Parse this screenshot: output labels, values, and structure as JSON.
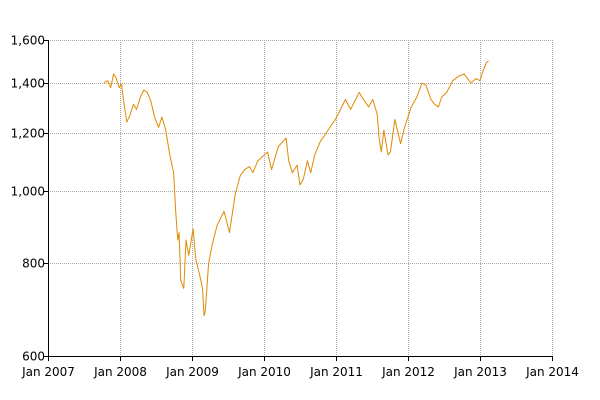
{
  "chart_data": {
    "type": "line",
    "title": "",
    "xlabel": "",
    "ylabel": "",
    "y_scale": "log",
    "ylim": [
      600,
      1600
    ],
    "xlim": [
      "2007-01-01",
      "2014-01-01"
    ],
    "grid": true,
    "line_color": "#e08a00",
    "y_ticks": [
      {
        "value": 600,
        "label": "600"
      },
      {
        "value": 800,
        "label": "800"
      },
      {
        "value": 1000,
        "label": "1,000"
      },
      {
        "value": 1200,
        "label": "1,200"
      },
      {
        "value": 1400,
        "label": "1,400"
      },
      {
        "value": 1600,
        "label": "1,600"
      }
    ],
    "x_ticks": [
      {
        "value": "2007-01-01",
        "label": "Jan 2007"
      },
      {
        "value": "2008-01-01",
        "label": "Jan 2008"
      },
      {
        "value": "2009-01-01",
        "label": "Jan 2009"
      },
      {
        "value": "2010-01-01",
        "label": "Jan 2010"
      },
      {
        "value": "2011-01-01",
        "label": "Jan 2011"
      },
      {
        "value": "2012-01-01",
        "label": "Jan 2012"
      },
      {
        "value": "2013-01-01",
        "label": "Jan 2013"
      },
      {
        "value": "2014-01-01",
        "label": "Jan 2014"
      }
    ],
    "series": [
      {
        "x": [
          "2007-10-10",
          "2007-10-31",
          "2007-11-15",
          "2007-11-30",
          "2007-12-14",
          "2007-12-28",
          "2008-01-09",
          "2008-01-22",
          "2008-02-05",
          "2008-02-20",
          "2008-03-10",
          "2008-03-25",
          "2008-04-14",
          "2008-05-01",
          "2008-05-19",
          "2008-06-05",
          "2008-06-25",
          "2008-07-15",
          "2008-08-01",
          "2008-08-20",
          "2008-09-10",
          "2008-09-29",
          "2008-10-10",
          "2008-10-20",
          "2008-10-27",
          "2008-11-04",
          "2008-11-20",
          "2008-12-01",
          "2008-12-15",
          "2009-01-06",
          "2009-01-20",
          "2009-02-09",
          "2009-02-23",
          "2009-03-03",
          "2009-03-09",
          "2009-03-26",
          "2009-04-14",
          "2009-05-08",
          "2009-06-12",
          "2009-07-10",
          "2009-08-07",
          "2009-09-02",
          "2009-09-24",
          "2009-10-20",
          "2009-11-05",
          "2009-12-01",
          "2010-01-19",
          "2010-02-08",
          "2010-03-15",
          "2010-04-23",
          "2010-05-06",
          "2010-05-25",
          "2010-06-18",
          "2010-07-02",
          "2010-07-20",
          "2010-08-09",
          "2010-08-26",
          "2010-09-15",
          "2010-10-15",
          "2010-11-05",
          "2010-12-01",
          "2010-12-29",
          "2011-01-18",
          "2011-02-18",
          "2011-03-16",
          "2011-04-29",
          "2011-05-20",
          "2011-06-16",
          "2011-07-07",
          "2011-07-29",
          "2011-08-08",
          "2011-08-19",
          "2011-09-01",
          "2011-09-22",
          "2011-10-04",
          "2011-10-27",
          "2011-11-25",
          "2011-12-15",
          "2012-01-18",
          "2012-02-15",
          "2012-03-13",
          "2012-04-02",
          "2012-04-27",
          "2012-05-16",
          "2012-06-04",
          "2012-06-20",
          "2012-07-16",
          "2012-08-15",
          "2012-09-14",
          "2012-10-12",
          "2012-11-15",
          "2012-12-12",
          "2012-12-31",
          "2013-01-15",
          "2013-02-01",
          "2013-02-13"
        ],
        "y": [
          1400,
          1410,
          1380,
          1440,
          1420,
          1380,
          1395,
          1310,
          1240,
          1265,
          1310,
          1290,
          1340,
          1370,
          1360,
          1325,
          1260,
          1220,
          1260,
          1210,
          1120,
          1060,
          940,
          860,
          880,
          760,
          740,
          860,
          820,
          890,
          810,
          770,
          740,
          680,
          690,
          800,
          850,
          900,
          940,
          880,
          990,
          1050,
          1070,
          1080,
          1060,
          1100,
          1130,
          1070,
          1150,
          1180,
          1100,
          1060,
          1085,
          1020,
          1040,
          1100,
          1060,
          1120,
          1170,
          1190,
          1220,
          1250,
          1280,
          1330,
          1290,
          1360,
          1330,
          1300,
          1330,
          1270,
          1180,
          1130,
          1210,
          1120,
          1130,
          1250,
          1160,
          1220,
          1300,
          1340,
          1400,
          1390,
          1330,
          1310,
          1300,
          1340,
          1360,
          1410,
          1430,
          1440,
          1400,
          1420,
          1410,
          1450,
          1490,
          1500
        ]
      }
    ]
  }
}
